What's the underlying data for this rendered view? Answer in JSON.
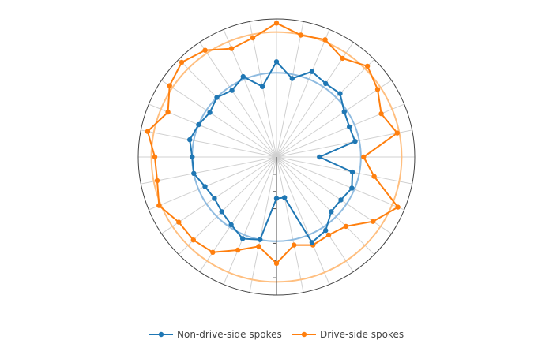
{
  "chart_data": {
    "type": "polar-line",
    "title": "",
    "angular_axis": {
      "spoke_count": 32,
      "direction": "clockwise",
      "rotation": "top",
      "grid": true
    },
    "radial_axis": {
      "range": [
        0,
        1
      ],
      "grid": false,
      "ticks": "outside",
      "tick_angle": "bottom",
      "tick_labels": []
    },
    "reference_circles": [
      {
        "radius": 0.61,
        "color": "#8fbbe0"
      },
      {
        "radius": 0.905,
        "color": "#ffbf80"
      }
    ],
    "series": [
      {
        "name": "Non-drive-side spokes",
        "color": "#1f77b4",
        "values": [
          0.69,
          0.58,
          0.67,
          0.64,
          0.65,
          0.59,
          0.57,
          0.58,
          0.31,
          0.56,
          0.59,
          0.56,
          0.56,
          0.64,
          0.67,
          0.3,
          0.3,
          0.61,
          0.64,
          0.59,
          0.56,
          0.54,
          0.56,
          0.61,
          0.61,
          0.64,
          0.61,
          0.58,
          0.61,
          0.58,
          0.63,
          0.52
        ]
      },
      {
        "name": "Drive-side spokes",
        "color": "#ff7f0e",
        "values": [
          0.97,
          0.9,
          0.92,
          0.86,
          0.93,
          0.88,
          0.82,
          0.89,
          0.63,
          0.72,
          0.95,
          0.84,
          0.71,
          0.68,
          0.69,
          0.65,
          0.77,
          0.66,
          0.73,
          0.83,
          0.85,
          0.85,
          0.92,
          0.88,
          0.88,
          0.95,
          0.85,
          0.93,
          0.97,
          0.93,
          0.85,
          0.88
        ]
      }
    ],
    "legend": {
      "position": "bottom"
    }
  }
}
